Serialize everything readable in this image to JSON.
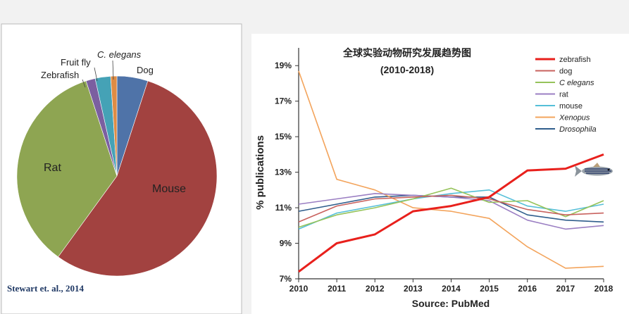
{
  "chart_data": [
    {
      "type": "pie",
      "citation": "Stewart et. al., 2014",
      "slices": [
        {
          "label": "Dog",
          "value": 5.0,
          "color": "#4f73a8",
          "italic": false
        },
        {
          "label": "Mouse",
          "value": 55.0,
          "color": "#a24240",
          "italic": false
        },
        {
          "label": "Rat",
          "value": 35.0,
          "color": "#8ea552",
          "italic": false
        },
        {
          "label": "Zebrafish",
          "value": 1.5,
          "color": "#7b5fa0",
          "italic": false
        },
        {
          "label": "Fruit fly",
          "value": 2.5,
          "color": "#45a2b6",
          "italic": false
        },
        {
          "label": "C. elegans",
          "value": 1.0,
          "color": "#de8c44",
          "italic": true
        }
      ]
    },
    {
      "type": "line",
      "title": "全球实验动物研究发展趋势图",
      "subtitle": "(2010-2018)",
      "xlabel": "Source: PubMed",
      "ylabel": "% publications",
      "x": [
        2010,
        2011,
        2012,
        2013,
        2014,
        2015,
        2016,
        2017,
        2018
      ],
      "ylim": [
        7,
        20
      ],
      "yticks": [
        7,
        9,
        11,
        13,
        15,
        17,
        19
      ],
      "ytick_labels": [
        "7%",
        "9%",
        "11%",
        "13%",
        "15%",
        "17%",
        "19%"
      ],
      "grid": false,
      "legend_position": "top-right",
      "series": [
        {
          "name": "zebrafish",
          "color": "#e8201c",
          "italic": false,
          "values": [
            7.4,
            9.0,
            9.5,
            10.8,
            11.1,
            11.6,
            13.1,
            13.2,
            14.0
          ]
        },
        {
          "name": "dog",
          "color": "#c8625e",
          "italic": false,
          "values": [
            10.2,
            11.1,
            11.5,
            11.6,
            11.7,
            11.5,
            10.9,
            10.6,
            10.7
          ]
        },
        {
          "name": "C elegans",
          "color": "#96c35a",
          "italic": true,
          "values": [
            9.9,
            10.6,
            11.0,
            11.5,
            12.1,
            11.3,
            11.4,
            10.5,
            11.4
          ]
        },
        {
          "name": "rat",
          "color": "#9b7fc3",
          "italic": false,
          "values": [
            11.2,
            11.5,
            11.8,
            11.7,
            11.6,
            11.4,
            10.3,
            9.8,
            10.0
          ]
        },
        {
          "name": "mouse",
          "color": "#55bfd8",
          "italic": false,
          "values": [
            9.8,
            10.7,
            11.1,
            11.5,
            11.8,
            12.0,
            11.1,
            10.8,
            11.2
          ]
        },
        {
          "name": "Xenopus",
          "color": "#f3a45c",
          "italic": true,
          "values": [
            18.7,
            12.6,
            12.0,
            11.0,
            10.8,
            10.4,
            8.8,
            7.6,
            7.7
          ]
        },
        {
          "name": "Drosophila",
          "color": "#2f5d8c",
          "italic": true,
          "values": [
            10.8,
            11.2,
            11.6,
            11.7,
            11.6,
            11.6,
            10.6,
            10.3,
            10.2
          ]
        }
      ]
    }
  ]
}
